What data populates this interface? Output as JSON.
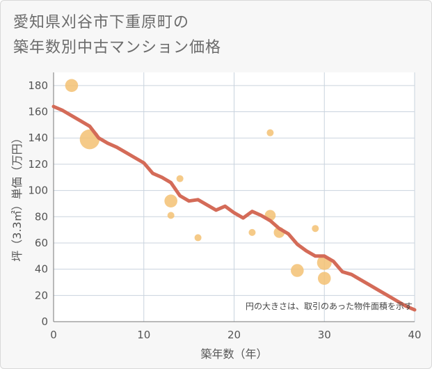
{
  "title": {
    "line1": "愛知県刈谷市下重原町の",
    "line2": "築年数別中古マンション価格"
  },
  "colors": {
    "line": "#d46b58",
    "bubble": "#f3c173",
    "grid": "#c9d3de",
    "plot_bg": "#ffffff"
  },
  "chart_data": {
    "type": "scatter",
    "title": "愛知県刈谷市下重原町の築年数別中古マンション価格",
    "xlabel": "築年数（年）",
    "ylabel": "坪（3.3㎡）単価（万円）",
    "xlim": [
      0,
      40
    ],
    "ylim": [
      0,
      190
    ],
    "xticks": [
      "0",
      "10",
      "20",
      "30",
      "40"
    ],
    "yticks": [
      "0",
      "20",
      "40",
      "60",
      "80",
      "100",
      "120",
      "140",
      "160",
      "180"
    ],
    "note": "円の大きさは、取引のあった物件面積を示す",
    "bubbles": [
      {
        "x": 2,
        "y": 180,
        "size": 3
      },
      {
        "x": 4,
        "y": 139,
        "size": 8
      },
      {
        "x": 13,
        "y": 92,
        "size": 3
      },
      {
        "x": 13,
        "y": 81,
        "size": 1
      },
      {
        "x": 14,
        "y": 109,
        "size": 1
      },
      {
        "x": 16,
        "y": 64,
        "size": 1
      },
      {
        "x": 22,
        "y": 68,
        "size": 1
      },
      {
        "x": 24,
        "y": 144,
        "size": 1
      },
      {
        "x": 24,
        "y": 81,
        "size": 2
      },
      {
        "x": 25,
        "y": 68,
        "size": 2
      },
      {
        "x": 27,
        "y": 39,
        "size": 3
      },
      {
        "x": 29,
        "y": 71,
        "size": 1
      },
      {
        "x": 30,
        "y": 45,
        "size": 4
      },
      {
        "x": 30,
        "y": 33,
        "size": 3
      }
    ],
    "trend": {
      "x": [
        0,
        1,
        2,
        3,
        4,
        5,
        6,
        7,
        8,
        9,
        10,
        11,
        12,
        13,
        14,
        15,
        16,
        17,
        18,
        19,
        20,
        21,
        22,
        23,
        24,
        25,
        26,
        27,
        28,
        29,
        30,
        31,
        32,
        33,
        34,
        35,
        36,
        37,
        38,
        39,
        40
      ],
      "y": [
        164,
        161,
        157,
        153,
        149,
        140,
        136,
        133,
        129,
        125,
        121,
        113,
        110,
        106,
        96,
        92,
        93,
        89,
        85,
        88,
        83,
        79,
        84,
        81,
        77,
        71,
        67,
        59,
        54,
        50,
        50,
        46,
        38,
        36,
        32,
        28,
        24,
        20,
        16,
        12,
        9
      ]
    }
  }
}
